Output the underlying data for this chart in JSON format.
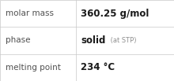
{
  "rows": [
    {
      "label": "molar mass",
      "value_parts": [
        {
          "text": "360.25 g/mol",
          "bold": true,
          "small": false
        }
      ]
    },
    {
      "label": "phase",
      "value_parts": [
        {
          "text": "solid",
          "bold": true,
          "small": false
        },
        {
          "text": " (at STP)",
          "bold": false,
          "small": true
        }
      ]
    },
    {
      "label": "melting point",
      "value_parts": [
        {
          "text": "234 °C",
          "bold": true,
          "small": false
        }
      ]
    }
  ],
  "col_split": 0.435,
  "background_color": "#ffffff",
  "border_color": "#c8c8c8",
  "label_color": "#505050",
  "value_color": "#1a1a1a",
  "small_color": "#909090",
  "label_fontsize": 7.5,
  "value_fontsize": 8.5,
  "small_fontsize": 6.0
}
